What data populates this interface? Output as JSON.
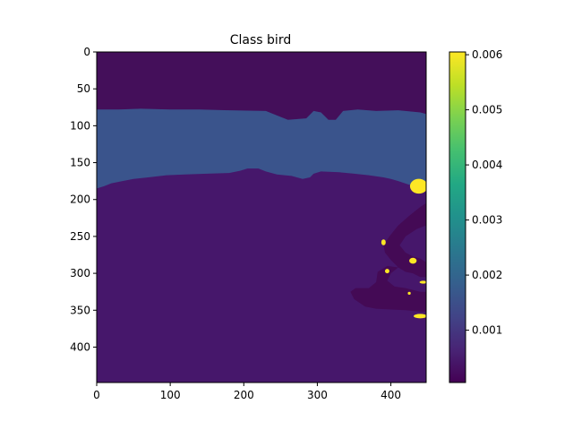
{
  "chart_data": {
    "type": "heatmap",
    "title": "Class bird",
    "xlabel": "",
    "ylabel": "",
    "xlim": [
      0,
      448
    ],
    "ylim": [
      448,
      0
    ],
    "x_ticks": [
      0,
      100,
      200,
      300,
      400
    ],
    "y_ticks": [
      0,
      50,
      100,
      150,
      200,
      250,
      300,
      350,
      400
    ],
    "colorbar": {
      "colormap": "viridis",
      "range": [
        5e-05,
        0.00605
      ],
      "ticks": [
        0.001,
        0.002,
        0.003,
        0.004,
        0.005,
        0.006
      ],
      "tick_labels": [
        "0.001",
        "0.002",
        "0.003",
        "0.004",
        "0.005",
        "0.006"
      ]
    },
    "grid": false,
    "regions": [
      {
        "name": "background",
        "value": 0.0004,
        "color": "#46176b"
      },
      {
        "name": "top-band",
        "value": 0.0001,
        "color": "#440f5a"
      },
      {
        "name": "mid-band",
        "value": 0.0016,
        "color": "#3a548c"
      },
      {
        "name": "right-bottom-dark",
        "value": 0.0001,
        "color": "#440a55"
      },
      {
        "name": "hot-spots",
        "value": 0.006,
        "color": "#fde725"
      }
    ]
  }
}
